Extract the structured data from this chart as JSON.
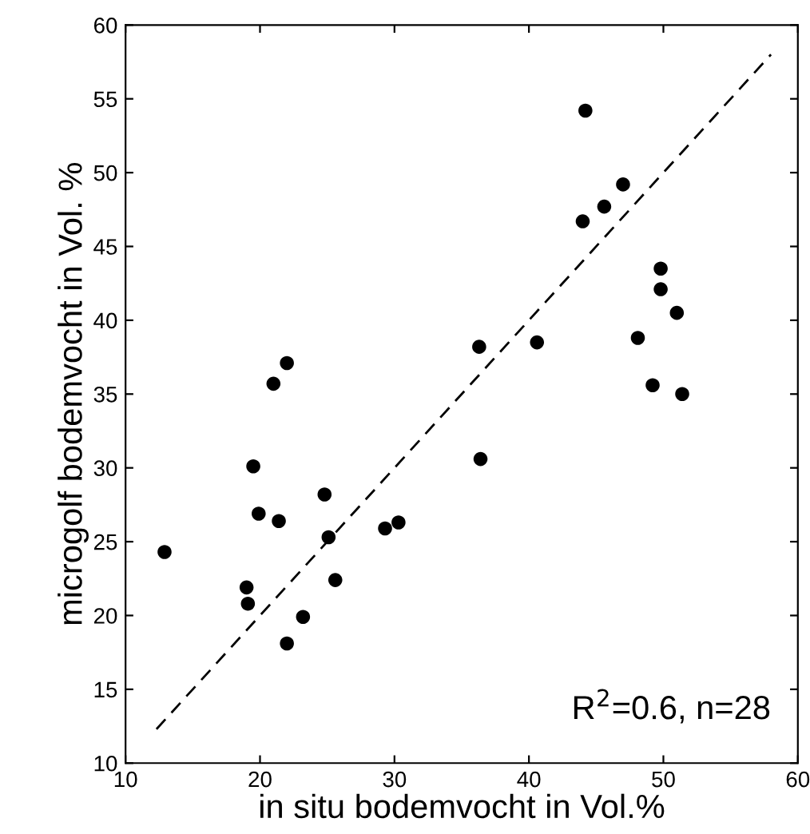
{
  "chart_data": {
    "type": "scatter",
    "xlabel": "in situ bodemvocht in Vol.%",
    "ylabel": "microgolf bodemvocht in Vol. %",
    "annotations": [
      "R$^{2}$=0.6, n=28"
    ],
    "xlim": [
      10,
      60
    ],
    "ylim": [
      10,
      60
    ],
    "xticks": [
      10,
      20,
      30,
      40,
      50,
      60
    ],
    "yticks": [
      10,
      15,
      20,
      25,
      30,
      35,
      40,
      45,
      50,
      55,
      60
    ],
    "grid": false,
    "series": [
      {
        "color": "#000000",
        "marker": "circle",
        "x": [
          12.9,
          19.0,
          19.1,
          19.5,
          19.9,
          21.0,
          21.4,
          22.0,
          22.0,
          23.2,
          24.8,
          25.1,
          25.6,
          29.3,
          30.3,
          36.3,
          36.4,
          40.6,
          44.0,
          44.2,
          45.6,
          47.0,
          48.1,
          49.2,
          49.8,
          49.8,
          51.0,
          51.4
        ],
        "values": [
          24.3,
          21.9,
          20.8,
          30.1,
          26.9,
          35.7,
          26.4,
          37.1,
          18.1,
          19.9,
          28.2,
          25.3,
          22.4,
          25.9,
          26.3,
          38.2,
          30.6,
          38.5,
          46.7,
          54.2,
          47.7,
          49.2,
          38.8,
          35.6,
          43.5,
          42.1,
          40.5,
          35.0
        ]
      },
      {
        "type": "line",
        "color": "#000000",
        "line_style": "dashed",
        "x": [
          12.3,
          58
        ],
        "values": [
          12.3,
          58
        ]
      }
    ]
  }
}
